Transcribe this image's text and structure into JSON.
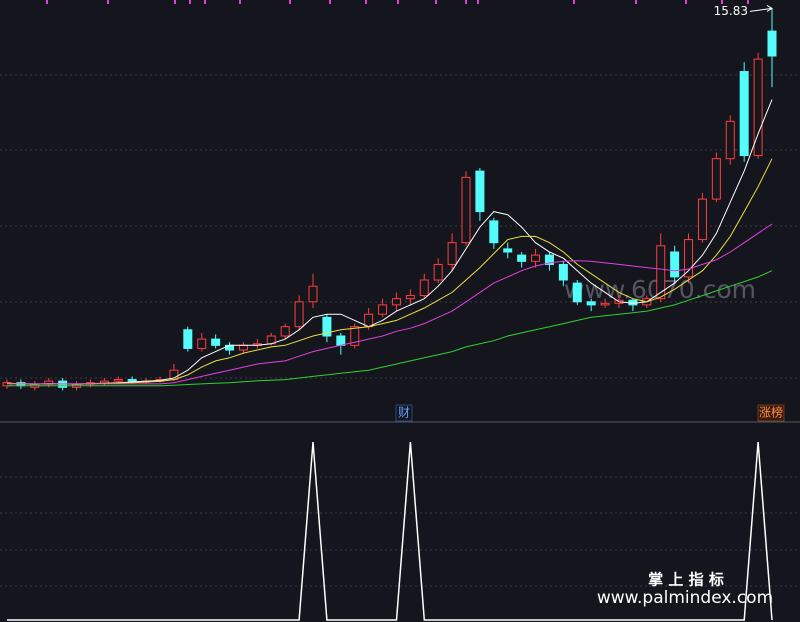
{
  "chart_data": [
    {
      "type": "candlestick",
      "up_color": "#ff3c3c",
      "down_color": "#54fcfc",
      "ylim": [
        2.6,
        16.1
      ],
      "open": [
        3.7,
        3.8,
        3.65,
        3.75,
        3.85,
        3.65,
        3.75,
        3.78,
        3.85,
        3.9,
        3.82,
        3.85,
        3.9,
        5.5,
        4.9,
        5.2,
        5.0,
        4.85,
        5.0,
        5.05,
        5.3,
        5.6,
        6.4,
        5.9,
        5.3,
        5.0,
        5.6,
        6.0,
        6.3,
        6.5,
        6.6,
        7.1,
        7.6,
        8.3,
        10.6,
        9.0,
        8.1,
        7.9,
        7.7,
        7.9,
        7.6,
        7.0,
        6.4,
        6.3,
        6.35,
        6.45,
        6.3,
        6.5,
        8.0,
        7.2,
        8.4,
        9.7,
        11.0,
        13.8,
        11.1,
        15.1
      ],
      "high": [
        3.9,
        3.9,
        3.85,
        3.95,
        3.95,
        3.85,
        3.9,
        3.95,
        4.0,
        4.0,
        3.95,
        4.0,
        4.4,
        5.6,
        5.4,
        5.35,
        5.1,
        5.1,
        5.2,
        5.4,
        5.7,
        6.6,
        7.3,
        6.0,
        5.4,
        5.7,
        6.2,
        6.5,
        6.7,
        6.8,
        7.3,
        7.8,
        8.6,
        10.6,
        10.7,
        9.1,
        8.3,
        8.0,
        8.1,
        8.0,
        7.7,
        7.1,
        6.5,
        6.5,
        6.6,
        6.5,
        6.6,
        8.6,
        8.2,
        8.6,
        9.9,
        11.2,
        12.4,
        14.1,
        14.4,
        15.83
      ],
      "low": [
        3.6,
        3.6,
        3.55,
        3.65,
        3.55,
        3.55,
        3.65,
        3.7,
        3.8,
        3.8,
        3.75,
        3.8,
        3.85,
        4.8,
        4.8,
        4.9,
        4.7,
        4.75,
        4.9,
        5.0,
        5.2,
        5.5,
        6.2,
        5.1,
        4.7,
        4.9,
        5.5,
        5.9,
        6.1,
        6.3,
        6.5,
        7.0,
        7.4,
        8.2,
        9.0,
        8.1,
        7.8,
        7.5,
        7.5,
        7.4,
        6.9,
        6.3,
        6.1,
        6.2,
        6.2,
        6.1,
        6.2,
        6.4,
        7.0,
        7.0,
        8.3,
        9.6,
        10.8,
        10.9,
        11.0,
        13.3
      ],
      "close": [
        3.8,
        3.7,
        3.75,
        3.85,
        3.65,
        3.75,
        3.8,
        3.85,
        3.9,
        3.85,
        3.85,
        3.9,
        4.2,
        4.9,
        5.2,
        5.0,
        4.85,
        5.0,
        5.05,
        5.3,
        5.6,
        6.4,
        6.9,
        5.3,
        5.0,
        5.6,
        6.0,
        6.3,
        6.5,
        6.6,
        7.1,
        7.6,
        8.3,
        10.4,
        9.3,
        8.3,
        8.0,
        7.7,
        7.9,
        7.6,
        7.1,
        6.4,
        6.3,
        6.35,
        6.45,
        6.3,
        6.5,
        8.2,
        7.2,
        8.4,
        9.7,
        11.0,
        12.2,
        11.1,
        14.2,
        14.3
      ],
      "series": [
        {
          "color": "#ffffff",
          "values": [
            3.78,
            3.76,
            3.75,
            3.77,
            3.76,
            3.75,
            3.76,
            3.78,
            3.8,
            3.82,
            3.85,
            3.87,
            3.95,
            4.2,
            4.6,
            4.8,
            5.0,
            5.0,
            5.0,
            5.05,
            5.2,
            5.5,
            5.9,
            6.0,
            6.0,
            5.8,
            5.6,
            5.8,
            6.1,
            6.3,
            6.5,
            6.9,
            7.4,
            8.1,
            8.8,
            9.3,
            9.2,
            8.8,
            8.3,
            8.0,
            7.8,
            7.4,
            7.0,
            6.7,
            6.4,
            6.35,
            6.4,
            6.7,
            7.0,
            7.4,
            7.9,
            8.6,
            9.6,
            10.6,
            11.8,
            12.9
          ]
        },
        {
          "color": "#e8e040",
          "values": [
            3.78,
            3.77,
            3.76,
            3.76,
            3.76,
            3.76,
            3.77,
            3.78,
            3.79,
            3.8,
            3.82,
            3.84,
            3.9,
            4.05,
            4.3,
            4.5,
            4.6,
            4.75,
            4.85,
            4.95,
            5.0,
            5.15,
            5.3,
            5.4,
            5.5,
            5.55,
            5.6,
            5.7,
            5.8,
            6.0,
            6.2,
            6.45,
            6.7,
            7.1,
            7.5,
            7.95,
            8.4,
            8.5,
            8.5,
            8.3,
            8.0,
            7.6,
            7.3,
            7.0,
            6.7,
            6.5,
            6.4,
            6.55,
            6.8,
            7.1,
            7.4,
            7.9,
            8.5,
            9.3,
            10.1,
            11.0
          ]
        },
        {
          "color": "#e040e0",
          "values": [
            3.76,
            3.76,
            3.76,
            3.76,
            3.76,
            3.76,
            3.76,
            3.76,
            3.76,
            3.76,
            3.76,
            3.76,
            3.8,
            3.9,
            4.0,
            4.1,
            4.2,
            4.3,
            4.4,
            4.45,
            4.5,
            4.65,
            4.8,
            4.9,
            5.0,
            5.1,
            5.2,
            5.3,
            5.45,
            5.55,
            5.7,
            5.9,
            6.1,
            6.4,
            6.7,
            7.0,
            7.2,
            7.4,
            7.55,
            7.65,
            7.7,
            7.72,
            7.7,
            7.65,
            7.6,
            7.55,
            7.5,
            7.45,
            7.4,
            7.45,
            7.6,
            7.75,
            8.0,
            8.3,
            8.6,
            8.9
          ]
        },
        {
          "color": "#30d030",
          "values": [
            3.7,
            3.7,
            3.7,
            3.7,
            3.7,
            3.7,
            3.7,
            3.7,
            3.7,
            3.7,
            3.7,
            3.7,
            3.72,
            3.74,
            3.76,
            3.78,
            3.8,
            3.83,
            3.86,
            3.88,
            3.9,
            3.95,
            4.0,
            4.05,
            4.1,
            4.15,
            4.2,
            4.3,
            4.4,
            4.5,
            4.6,
            4.7,
            4.8,
            4.95,
            5.05,
            5.15,
            5.3,
            5.4,
            5.5,
            5.6,
            5.7,
            5.8,
            5.9,
            5.95,
            6.0,
            6.05,
            6.1,
            6.2,
            6.3,
            6.45,
            6.6,
            6.75,
            6.9,
            7.05,
            7.2,
            7.4
          ]
        }
      ],
      "annotations": [
        "财",
        "涨榜"
      ]
    },
    {
      "type": "line",
      "color": "#ffffff",
      "ylim": [
        0,
        1
      ],
      "values": [
        0,
        0,
        0,
        0,
        0,
        0,
        0,
        0,
        0,
        0,
        0,
        0,
        0,
        0,
        0,
        0,
        0,
        0,
        0,
        0,
        0,
        0,
        1,
        0,
        0,
        0,
        0,
        0,
        0,
        1,
        0,
        0,
        0,
        0,
        0,
        0,
        0,
        0,
        0,
        0,
        0,
        0,
        0,
        0,
        0,
        0,
        0,
        0,
        0,
        0,
        0,
        0,
        0,
        0,
        1,
        0
      ]
    }
  ],
  "watermark": "www.6070.com",
  "footer": {
    "title": "掌 上 指 标",
    "url": "www.palmindex.com"
  }
}
